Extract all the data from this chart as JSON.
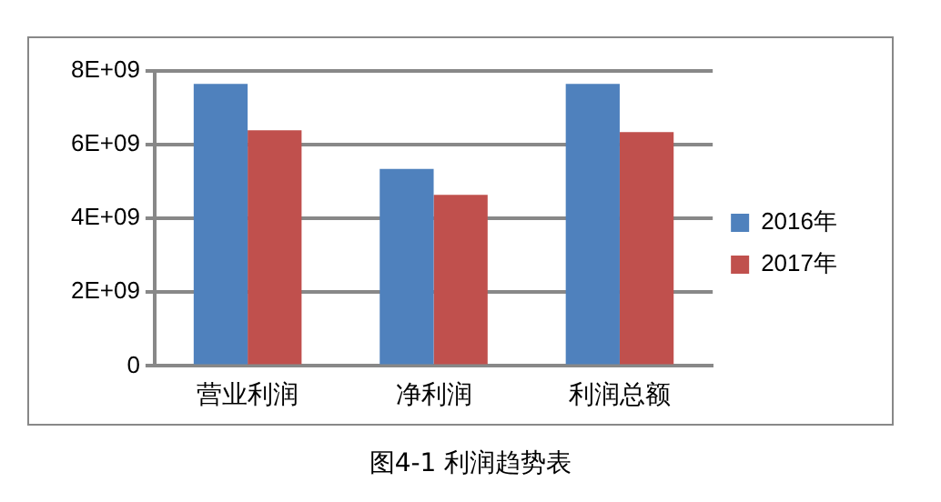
{
  "chart_data": {
    "type": "bar",
    "title": "图4-1  利润趋势表",
    "categories": [
      "营业利润",
      "净利润",
      "利润总额"
    ],
    "series": [
      {
        "name": "2016年",
        "color": "#4f81bd",
        "values": [
          7650000000,
          5340000000,
          7650000000
        ]
      },
      {
        "name": "2017年",
        "color": "#c0504d",
        "values": [
          6390000000,
          4640000000,
          6340000000
        ]
      }
    ],
    "ylim": [
      0,
      8000000000
    ],
    "yticks": [
      0,
      {
        "value": 2000000000,
        "label": "2E+09"
      },
      {
        "value": 4000000000,
        "label": "4E+09"
      },
      {
        "value": 6000000000,
        "label": "6E+09"
      },
      {
        "value": 8000000000,
        "label": "8E+09"
      }
    ],
    "grid": "y",
    "legend": "right"
  }
}
